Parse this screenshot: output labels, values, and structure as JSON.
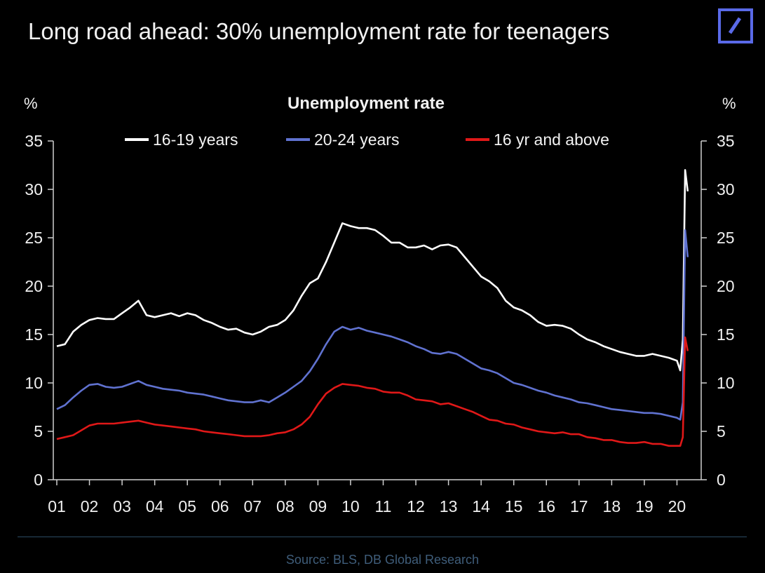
{
  "header": {
    "title": "Long road ahead: 30% unemployment rate for teenagers"
  },
  "footer": {
    "source": "Source: BLS, DB Global Research"
  },
  "colors": {
    "background": "#000000",
    "series_16_19": "#ffffff",
    "series_20_24": "#6072d0",
    "series_16_above": "#e01818",
    "logo_blue": "#5a6ae8",
    "source_text": "#3f5d7a"
  },
  "chart_data": {
    "type": "line",
    "title": "Unemployment rate",
    "ylabel_left": "%",
    "ylabel_right": "%",
    "ylim": [
      0,
      35
    ],
    "yticks": [
      0,
      5,
      10,
      15,
      20,
      25,
      30,
      35
    ],
    "x_tick_labels": [
      "01",
      "02",
      "03",
      "04",
      "05",
      "06",
      "07",
      "08",
      "09",
      "10",
      "11",
      "12",
      "13",
      "14",
      "15",
      "16",
      "17",
      "18",
      "19",
      "20"
    ],
    "grid": false,
    "legend_position": "top",
    "x_unit": "year",
    "series": [
      {
        "name": "16-19 years",
        "color": "#ffffff",
        "points": [
          [
            2001.0,
            13.8
          ],
          [
            2001.25,
            14.0
          ],
          [
            2001.5,
            15.3
          ],
          [
            2001.75,
            16.0
          ],
          [
            2002.0,
            16.5
          ],
          [
            2002.25,
            16.7
          ],
          [
            2002.5,
            16.6
          ],
          [
            2002.75,
            16.6
          ],
          [
            2003.0,
            17.2
          ],
          [
            2003.25,
            17.8
          ],
          [
            2003.5,
            18.5
          ],
          [
            2003.75,
            17.0
          ],
          [
            2004.0,
            16.8
          ],
          [
            2004.25,
            17.0
          ],
          [
            2004.5,
            17.2
          ],
          [
            2004.75,
            16.9
          ],
          [
            2005.0,
            17.2
          ],
          [
            2005.25,
            17.0
          ],
          [
            2005.5,
            16.5
          ],
          [
            2005.75,
            16.2
          ],
          [
            2006.0,
            15.8
          ],
          [
            2006.25,
            15.5
          ],
          [
            2006.5,
            15.6
          ],
          [
            2006.75,
            15.2
          ],
          [
            2007.0,
            15.0
          ],
          [
            2007.25,
            15.3
          ],
          [
            2007.5,
            15.8
          ],
          [
            2007.75,
            16.0
          ],
          [
            2008.0,
            16.5
          ],
          [
            2008.25,
            17.5
          ],
          [
            2008.5,
            19.0
          ],
          [
            2008.75,
            20.3
          ],
          [
            2009.0,
            20.8
          ],
          [
            2009.25,
            22.5
          ],
          [
            2009.5,
            24.5
          ],
          [
            2009.75,
            26.5
          ],
          [
            2010.0,
            26.2
          ],
          [
            2010.25,
            26.0
          ],
          [
            2010.5,
            26.0
          ],
          [
            2010.75,
            25.8
          ],
          [
            2011.0,
            25.2
          ],
          [
            2011.25,
            24.5
          ],
          [
            2011.5,
            24.5
          ],
          [
            2011.75,
            24.0
          ],
          [
            2012.0,
            24.0
          ],
          [
            2012.25,
            24.2
          ],
          [
            2012.5,
            23.8
          ],
          [
            2012.75,
            24.2
          ],
          [
            2013.0,
            24.3
          ],
          [
            2013.25,
            24.0
          ],
          [
            2013.5,
            23.0
          ],
          [
            2013.75,
            22.0
          ],
          [
            2014.0,
            21.0
          ],
          [
            2014.25,
            20.5
          ],
          [
            2014.5,
            19.8
          ],
          [
            2014.75,
            18.5
          ],
          [
            2015.0,
            17.8
          ],
          [
            2015.25,
            17.5
          ],
          [
            2015.5,
            17.0
          ],
          [
            2015.75,
            16.3
          ],
          [
            2016.0,
            15.9
          ],
          [
            2016.25,
            16.0
          ],
          [
            2016.5,
            15.9
          ],
          [
            2016.75,
            15.6
          ],
          [
            2017.0,
            15.0
          ],
          [
            2017.25,
            14.5
          ],
          [
            2017.5,
            14.2
          ],
          [
            2017.75,
            13.8
          ],
          [
            2018.0,
            13.5
          ],
          [
            2018.25,
            13.2
          ],
          [
            2018.5,
            13.0
          ],
          [
            2018.75,
            12.8
          ],
          [
            2019.0,
            12.8
          ],
          [
            2019.25,
            13.0
          ],
          [
            2019.5,
            12.8
          ],
          [
            2019.75,
            12.6
          ],
          [
            2020.0,
            12.3
          ],
          [
            2020.1,
            11.3
          ],
          [
            2020.18,
            14.5
          ],
          [
            2020.25,
            32.0
          ],
          [
            2020.33,
            29.8
          ]
        ]
      },
      {
        "name": "20-24 years",
        "color": "#6072d0",
        "points": [
          [
            2001.0,
            7.3
          ],
          [
            2001.25,
            7.7
          ],
          [
            2001.5,
            8.5
          ],
          [
            2001.75,
            9.2
          ],
          [
            2002.0,
            9.8
          ],
          [
            2002.25,
            9.9
          ],
          [
            2002.5,
            9.6
          ],
          [
            2002.75,
            9.5
          ],
          [
            2003.0,
            9.6
          ],
          [
            2003.25,
            9.9
          ],
          [
            2003.5,
            10.2
          ],
          [
            2003.75,
            9.8
          ],
          [
            2004.0,
            9.6
          ],
          [
            2004.25,
            9.4
          ],
          [
            2004.5,
            9.3
          ],
          [
            2004.75,
            9.2
          ],
          [
            2005.0,
            9.0
          ],
          [
            2005.25,
            8.9
          ],
          [
            2005.5,
            8.8
          ],
          [
            2005.75,
            8.6
          ],
          [
            2006.0,
            8.4
          ],
          [
            2006.25,
            8.2
          ],
          [
            2006.5,
            8.1
          ],
          [
            2006.75,
            8.0
          ],
          [
            2007.0,
            8.0
          ],
          [
            2007.25,
            8.2
          ],
          [
            2007.5,
            8.0
          ],
          [
            2007.75,
            8.5
          ],
          [
            2008.0,
            9.0
          ],
          [
            2008.25,
            9.6
          ],
          [
            2008.5,
            10.2
          ],
          [
            2008.75,
            11.2
          ],
          [
            2009.0,
            12.5
          ],
          [
            2009.25,
            14.0
          ],
          [
            2009.5,
            15.3
          ],
          [
            2009.75,
            15.8
          ],
          [
            2010.0,
            15.5
          ],
          [
            2010.25,
            15.7
          ],
          [
            2010.5,
            15.4
          ],
          [
            2010.75,
            15.2
          ],
          [
            2011.0,
            15.0
          ],
          [
            2011.25,
            14.8
          ],
          [
            2011.5,
            14.5
          ],
          [
            2011.75,
            14.2
          ],
          [
            2012.0,
            13.8
          ],
          [
            2012.25,
            13.5
          ],
          [
            2012.5,
            13.1
          ],
          [
            2012.75,
            13.0
          ],
          [
            2013.0,
            13.2
          ],
          [
            2013.25,
            13.0
          ],
          [
            2013.5,
            12.5
          ],
          [
            2013.75,
            12.0
          ],
          [
            2014.0,
            11.5
          ],
          [
            2014.25,
            11.3
          ],
          [
            2014.5,
            11.0
          ],
          [
            2014.75,
            10.5
          ],
          [
            2015.0,
            10.0
          ],
          [
            2015.25,
            9.8
          ],
          [
            2015.5,
            9.5
          ],
          [
            2015.75,
            9.2
          ],
          [
            2016.0,
            9.0
          ],
          [
            2016.25,
            8.7
          ],
          [
            2016.5,
            8.5
          ],
          [
            2016.75,
            8.3
          ],
          [
            2017.0,
            8.0
          ],
          [
            2017.25,
            7.9
          ],
          [
            2017.5,
            7.7
          ],
          [
            2017.75,
            7.5
          ],
          [
            2018.0,
            7.3
          ],
          [
            2018.25,
            7.2
          ],
          [
            2018.5,
            7.1
          ],
          [
            2018.75,
            7.0
          ],
          [
            2019.0,
            6.9
          ],
          [
            2019.25,
            6.9
          ],
          [
            2019.5,
            6.8
          ],
          [
            2019.75,
            6.6
          ],
          [
            2020.0,
            6.4
          ],
          [
            2020.1,
            6.2
          ],
          [
            2020.18,
            8.0
          ],
          [
            2020.25,
            25.8
          ],
          [
            2020.33,
            23.0
          ]
        ]
      },
      {
        "name": "16 yr and above",
        "color": "#e01818",
        "points": [
          [
            2001.0,
            4.2
          ],
          [
            2001.25,
            4.4
          ],
          [
            2001.5,
            4.6
          ],
          [
            2001.75,
            5.1
          ],
          [
            2002.0,
            5.6
          ],
          [
            2002.25,
            5.8
          ],
          [
            2002.5,
            5.8
          ],
          [
            2002.75,
            5.8
          ],
          [
            2003.0,
            5.9
          ],
          [
            2003.25,
            6.0
          ],
          [
            2003.5,
            6.1
          ],
          [
            2003.75,
            5.9
          ],
          [
            2004.0,
            5.7
          ],
          [
            2004.25,
            5.6
          ],
          [
            2004.5,
            5.5
          ],
          [
            2004.75,
            5.4
          ],
          [
            2005.0,
            5.3
          ],
          [
            2005.25,
            5.2
          ],
          [
            2005.5,
            5.0
          ],
          [
            2005.75,
            4.9
          ],
          [
            2006.0,
            4.8
          ],
          [
            2006.25,
            4.7
          ],
          [
            2006.5,
            4.6
          ],
          [
            2006.75,
            4.5
          ],
          [
            2007.0,
            4.5
          ],
          [
            2007.25,
            4.5
          ],
          [
            2007.5,
            4.6
          ],
          [
            2007.75,
            4.8
          ],
          [
            2008.0,
            4.9
          ],
          [
            2008.25,
            5.2
          ],
          [
            2008.5,
            5.7
          ],
          [
            2008.75,
            6.5
          ],
          [
            2009.0,
            7.8
          ],
          [
            2009.25,
            8.9
          ],
          [
            2009.5,
            9.5
          ],
          [
            2009.75,
            9.9
          ],
          [
            2010.0,
            9.8
          ],
          [
            2010.25,
            9.7
          ],
          [
            2010.5,
            9.5
          ],
          [
            2010.75,
            9.4
          ],
          [
            2011.0,
            9.1
          ],
          [
            2011.25,
            9.0
          ],
          [
            2011.5,
            9.0
          ],
          [
            2011.75,
            8.7
          ],
          [
            2012.0,
            8.3
          ],
          [
            2012.25,
            8.2
          ],
          [
            2012.5,
            8.1
          ],
          [
            2012.75,
            7.8
          ],
          [
            2013.0,
            7.9
          ],
          [
            2013.25,
            7.6
          ],
          [
            2013.5,
            7.3
          ],
          [
            2013.75,
            7.0
          ],
          [
            2014.0,
            6.6
          ],
          [
            2014.25,
            6.2
          ],
          [
            2014.5,
            6.1
          ],
          [
            2014.75,
            5.8
          ],
          [
            2015.0,
            5.7
          ],
          [
            2015.25,
            5.4
          ],
          [
            2015.5,
            5.2
          ],
          [
            2015.75,
            5.0
          ],
          [
            2016.0,
            4.9
          ],
          [
            2016.25,
            4.8
          ],
          [
            2016.5,
            4.9
          ],
          [
            2016.75,
            4.7
          ],
          [
            2017.0,
            4.7
          ],
          [
            2017.25,
            4.4
          ],
          [
            2017.5,
            4.3
          ],
          [
            2017.75,
            4.1
          ],
          [
            2018.0,
            4.1
          ],
          [
            2018.25,
            3.9
          ],
          [
            2018.5,
            3.8
          ],
          [
            2018.75,
            3.8
          ],
          [
            2019.0,
            3.9
          ],
          [
            2019.25,
            3.7
          ],
          [
            2019.5,
            3.7
          ],
          [
            2019.75,
            3.5
          ],
          [
            2020.0,
            3.5
          ],
          [
            2020.1,
            3.5
          ],
          [
            2020.18,
            4.4
          ],
          [
            2020.25,
            14.7
          ],
          [
            2020.33,
            13.3
          ]
        ]
      }
    ]
  }
}
